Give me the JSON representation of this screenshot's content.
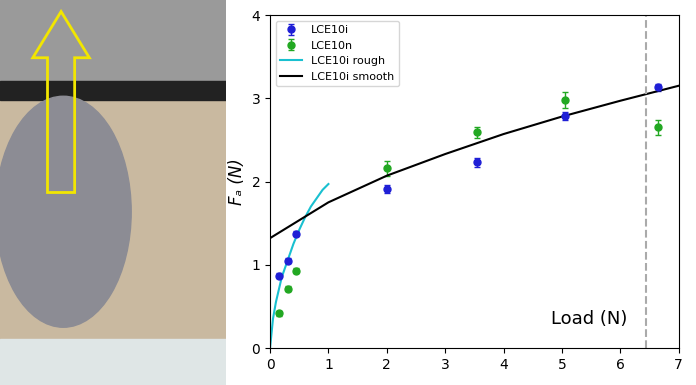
{
  "chart_data": {
    "type": "scatter",
    "ylabel": "Fₐ (N)",
    "annotation": "Load (N)",
    "vline": 6.45,
    "xlim": [
      0,
      7
    ],
    "xticks": [
      0,
      1,
      2,
      3,
      4,
      5,
      6,
      7
    ],
    "ylim": [
      0,
      4
    ],
    "yticks": [
      0,
      1,
      2,
      3,
      4
    ],
    "legend": "upper left",
    "series": [
      {
        "name": "LCE10i",
        "type": "scatter",
        "color": "#1f1fd6",
        "marker": "o",
        "x": [
          0.15,
          0.3,
          0.45,
          2.0,
          3.55,
          5.05,
          6.65
        ],
        "values": [
          0.87,
          1.05,
          1.37,
          1.91,
          2.23,
          2.79,
          3.13
        ],
        "errors": [
          0.03,
          0.03,
          0.03,
          0.05,
          0.05,
          0.05,
          0.04
        ]
      },
      {
        "name": "LCE10n",
        "type": "scatter",
        "color": "#22a822",
        "marker": "o",
        "x": [
          0.15,
          0.3,
          0.45,
          2.0,
          3.55,
          5.05,
          6.65
        ],
        "values": [
          0.42,
          0.71,
          0.93,
          2.16,
          2.59,
          2.98,
          2.65
        ],
        "errors": [
          0.03,
          0.03,
          0.03,
          0.09,
          0.07,
          0.1,
          0.09
        ]
      },
      {
        "name": "LCE10i rough",
        "type": "line",
        "color": "#19c0d0",
        "line_style": "solid",
        "x": [
          0,
          0.05,
          0.1,
          0.2,
          0.3,
          0.4,
          0.5,
          0.6,
          0.7,
          0.8,
          0.9,
          1.0
        ],
        "values": [
          0,
          0.35,
          0.55,
          0.85,
          1.05,
          1.25,
          1.42,
          1.57,
          1.7,
          1.8,
          1.9,
          1.97
        ]
      },
      {
        "name": "LCE10i smooth",
        "type": "line",
        "color": "#000000",
        "line_style": "solid",
        "x": [
          0,
          1,
          2,
          3,
          4,
          5,
          6,
          7
        ],
        "values": [
          1.32,
          1.75,
          2.07,
          2.33,
          2.57,
          2.78,
          2.97,
          3.15
        ]
      }
    ]
  }
}
